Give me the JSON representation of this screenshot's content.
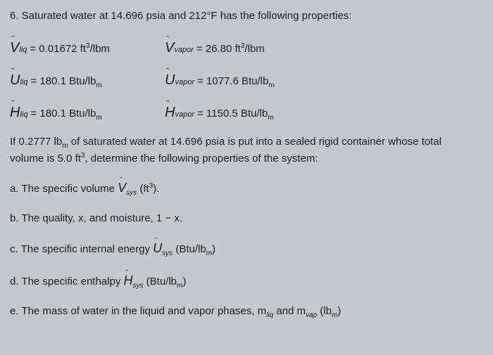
{
  "header": "6. Saturated water at 14.696 psia and 212°F has the following properties:",
  "properties": {
    "v_liq": {
      "symbol": "V",
      "hat": "ˆ",
      "sub": "liq",
      "value": "= 0.01672 ft",
      "sup": "3",
      "unit": "/lbm"
    },
    "v_vapor": {
      "symbol": "V",
      "hat": "ˆ",
      "sub": "vapor",
      "value": "= 26.80 ft",
      "sup": "3",
      "unit": "/lbm"
    },
    "u_liq": {
      "symbol": "U",
      "hat": "ˆ",
      "sub": "liq",
      "value": "= 180.1 Btu/lb",
      "unit_sub": "m"
    },
    "u_vapor": {
      "symbol": "U",
      "hat": "ˆ",
      "sub": "vapor",
      "value": "= 1077.6 Btu/lb",
      "unit_sub": "m"
    },
    "h_liq": {
      "symbol": "H",
      "hat": "ˆ",
      "sub": "liq",
      "value": "= 180.1 Btu/lb",
      "unit_sub": "m"
    },
    "h_vapor": {
      "symbol": "H",
      "hat": "ˆ",
      "sub": "vapor",
      "value": "= 1150.5 Btu/lb",
      "unit_sub": "m"
    }
  },
  "problem_text_1": "If 0.2777 lb",
  "problem_text_1_sub": "m",
  "problem_text_2": " of saturated water at 14.696 psia is put into a sealed rigid container whose total",
  "problem_text_3": "volume is 5.0 ft",
  "problem_text_3_sup": "3",
  "problem_text_4": ", determine the following properties of the system:",
  "questions": {
    "a": {
      "prefix": "a. The specific volume ",
      "symbol": "V",
      "hat": "ˆ",
      "sub": "sys",
      "suffix": " (ft",
      "sup": "3",
      "end": ")."
    },
    "b": {
      "text": "b. The quality, x, and moisture, 1 − x."
    },
    "c": {
      "prefix": "c. The specific internal energy ",
      "symbol": "U",
      "hat": "ˆ",
      "sub": "sys",
      "suffix": " (Btu/lb",
      "unit_sub": "m",
      "end": ")"
    },
    "d": {
      "prefix": "d. The specific enthalpy ",
      "symbol": "H",
      "hat": "ˆ",
      "sub": "sys",
      "suffix": " (Btu/lb",
      "unit_sub": "m",
      "end": ")"
    },
    "e": {
      "prefix": "e. The mass of water in the liquid and vapor phases, m",
      "sub1": "liq",
      "mid": " and m",
      "sub2": "vap",
      "suffix": " (lb",
      "unit_sub": "m",
      "end": ")"
    }
  },
  "colors": {
    "background": "#c4c9cd",
    "text": "#1a1a1a"
  }
}
